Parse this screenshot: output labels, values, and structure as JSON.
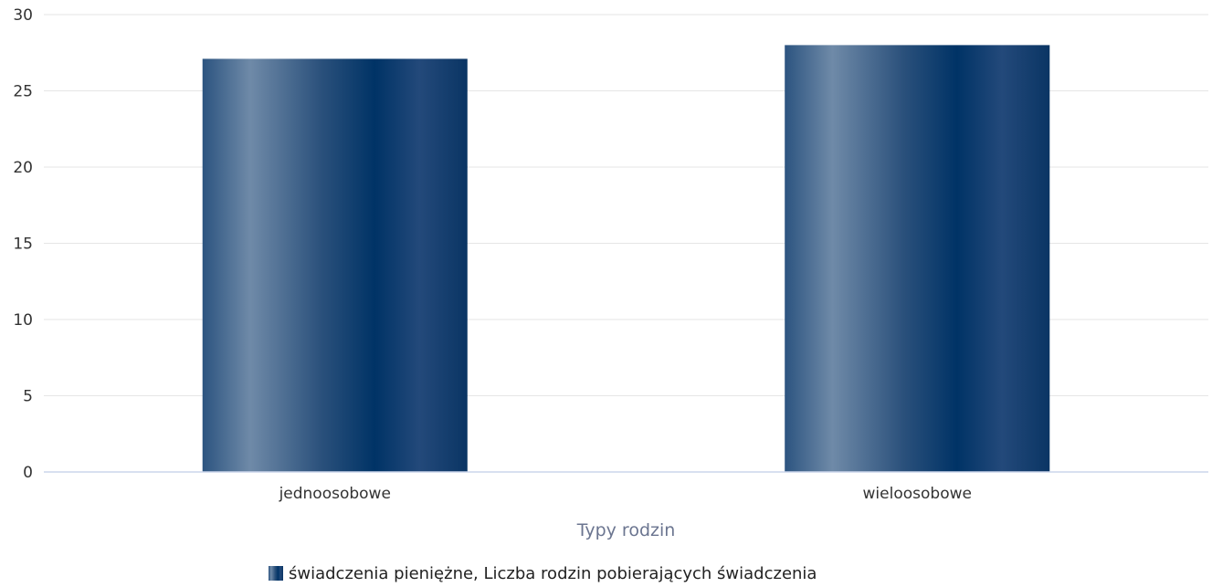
{
  "chart_data": {
    "type": "bar",
    "categories": [
      "jednoosobowe",
      "wieloosobowe"
    ],
    "series": [
      {
        "name": "świadczenia pieniężne, Liczba rodzin pobierających świadczenia",
        "values": [
          27.1,
          28.0
        ]
      }
    ],
    "title": "",
    "xlabel": "Typy rodzin",
    "ylabel": "",
    "ylim": [
      0,
      30
    ],
    "yticks": [
      0,
      5,
      10,
      15,
      20,
      25,
      30
    ],
    "grid": true,
    "legend_position": "bottom-center",
    "colors": {
      "bar_dark": "#003366",
      "bar_light": "#6f8aa8",
      "grid": "#e6e6e6",
      "axis": "#ccd6eb",
      "axis_title": "#6b7590"
    }
  }
}
